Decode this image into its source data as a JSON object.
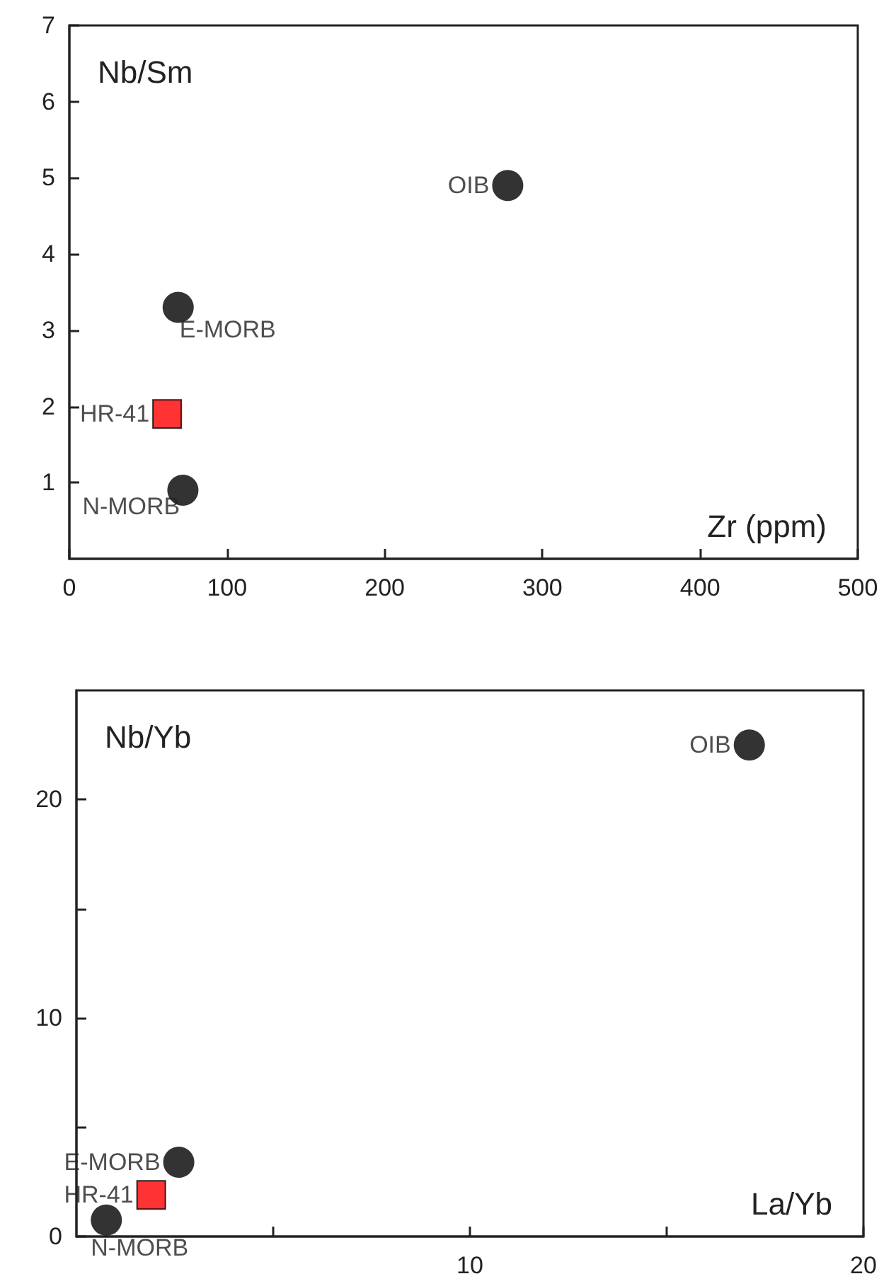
{
  "chart_data": [
    {
      "type": "scatter",
      "xlabel": "Zr (ppm)",
      "ylabel": "Nb/Sm",
      "xlim": [
        0,
        500
      ],
      "ylim": [
        0,
        7
      ],
      "xticks": [
        0,
        100,
        200,
        300,
        400,
        500
      ],
      "yticks": [
        1,
        2,
        3,
        4,
        5,
        6,
        7
      ],
      "grid": false,
      "series": [
        {
          "name": "OIB",
          "color": "#000000",
          "marker": "circle",
          "x": [
            278
          ],
          "values": [
            4.9
          ]
        },
        {
          "name": "E-MORB",
          "color": "#000000",
          "marker": "circle",
          "x": [
            69
          ],
          "values": [
            3.3
          ]
        },
        {
          "name": "HR-41",
          "color": "#ff0000",
          "marker": "square",
          "x": [
            62
          ],
          "values": [
            1.9
          ]
        },
        {
          "name": "N-MORB",
          "color": "#000000",
          "marker": "circle",
          "x": [
            72
          ],
          "values": [
            0.9
          ]
        }
      ]
    },
    {
      "type": "scatter",
      "xlabel": "La/Yb",
      "ylabel": "Nb/Yb",
      "xlim": [
        0,
        20
      ],
      "ylim": [
        0,
        25
      ],
      "xticks": [
        {
          "value": 5,
          "label": null
        },
        10,
        {
          "value": 15,
          "label": null
        },
        20
      ],
      "yticks": [
        0,
        {
          "value": 5,
          "label": null
        },
        10,
        {
          "value": 15,
          "label": null
        },
        20
      ],
      "grid": false,
      "series": [
        {
          "name": "OIB",
          "color": "#000000",
          "marker": "circle",
          "x": [
            17.1
          ],
          "values": [
            22.5
          ]
        },
        {
          "name": "E-MORB",
          "color": "#000000",
          "marker": "circle",
          "x": [
            2.6
          ],
          "values": [
            3.4
          ]
        },
        {
          "name": "HR-41",
          "color": "#ff0000",
          "marker": "square",
          "x": [
            1.9
          ],
          "values": [
            1.9
          ]
        },
        {
          "name": "N-MORB",
          "color": "#000000",
          "marker": "circle",
          "x": [
            0.76
          ],
          "values": [
            0.75
          ]
        }
      ]
    }
  ]
}
